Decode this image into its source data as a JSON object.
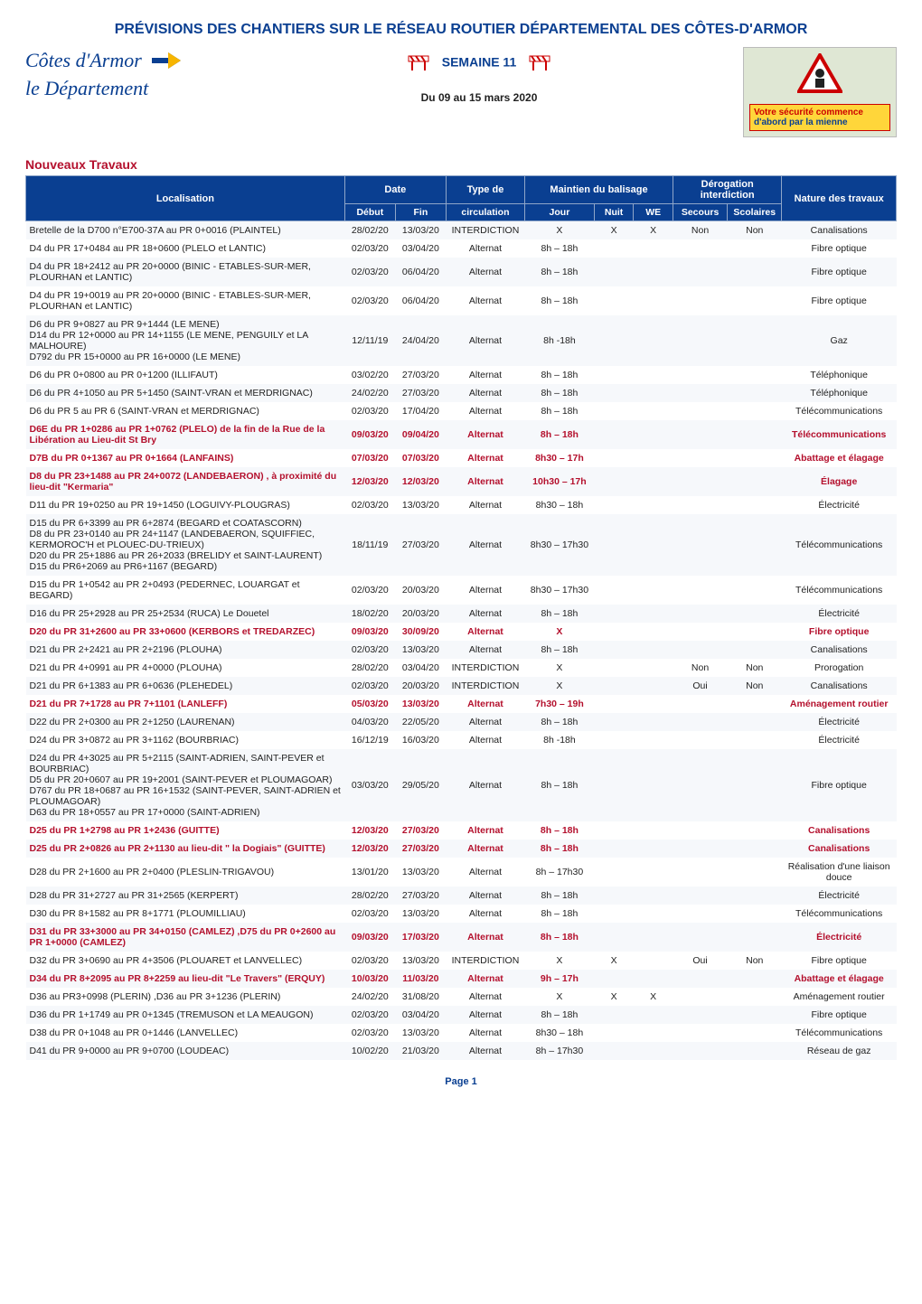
{
  "title": "PRÉVISIONS DES CHANTIERS SUR LE RÉSEAU ROUTIER DÉPARTEMENTAL DES CÔTES-D'ARMOR",
  "logo": {
    "line1": "Côtes d'Armor",
    "line2": "le Département"
  },
  "semaine_label": "SEMAINE 11",
  "date_range": "Du 09 au 15 mars 2020",
  "panel": {
    "line1": "Votre sécurité commence",
    "line2": "d'abord par la mienne"
  },
  "section": "Nouveaux Travaux",
  "headers": {
    "localisation": "Localisation",
    "date": "Date",
    "debut": "Début",
    "fin": "Fin",
    "type": "Type de",
    "circulation": "circulation",
    "maintien": "Maintien du balisage",
    "jour": "Jour",
    "nuit": "Nuit",
    "we": "WE",
    "derog": "Dérogation interdiction",
    "secours": "Secours",
    "scolaires": "Scolaires",
    "nature": "Nature des travaux"
  },
  "rows": [
    {
      "loc": "Bretelle de la D700 n°E700-37A au PR 0+0016 (PLAINTEL)",
      "d": "28/02/20",
      "f": "13/03/20",
      "t": "INTERDICTION",
      "j": "X",
      "n": "X",
      "w": "X",
      "s": "Non",
      "sc": "Non",
      "nat": "Canalisations"
    },
    {
      "loc": "D4 du PR 17+0484 au PR 18+0600 (PLELO et LANTIC)",
      "d": "02/03/20",
      "f": "03/04/20",
      "t": "Alternat",
      "j": "8h – 18h",
      "n": "",
      "w": "",
      "s": "",
      "sc": "",
      "nat": "Fibre optique"
    },
    {
      "loc": "D4 du PR 18+2412 au PR 20+0000 (BINIC - ETABLES-SUR-MER, PLOURHAN et LANTIC)",
      "d": "02/03/20",
      "f": "06/04/20",
      "t": "Alternat",
      "j": "8h – 18h",
      "n": "",
      "w": "",
      "s": "",
      "sc": "",
      "nat": "Fibre optique"
    },
    {
      "loc": "D4 du PR 19+0019 au PR 20+0000 (BINIC - ETABLES-SUR-MER, PLOURHAN et LANTIC)",
      "d": "02/03/20",
      "f": "06/04/20",
      "t": "Alternat",
      "j": "8h – 18h",
      "n": "",
      "w": "",
      "s": "",
      "sc": "",
      "nat": "Fibre optique"
    },
    {
      "loc": "D6 du PR 9+0827 au PR 9+1444 (LE MENE)\nD14 du PR 12+0000 au PR 14+1155 (LE MENE, PENGUILY et LA MALHOURE)\nD792 du PR 15+0000 au PR 16+0000 (LE MENE)",
      "d": "12/11/19",
      "f": "24/04/20",
      "t": "Alternat",
      "j": "8h -18h",
      "n": "",
      "w": "",
      "s": "",
      "sc": "",
      "nat": "Gaz"
    },
    {
      "loc": "D6 du PR 0+0800 au PR 0+1200 (ILLIFAUT)",
      "d": "03/02/20",
      "f": "27/03/20",
      "t": "Alternat",
      "j": "8h – 18h",
      "n": "",
      "w": "",
      "s": "",
      "sc": "",
      "nat": "Téléphonique"
    },
    {
      "loc": "D6 du PR 4+1050 au PR 5+1450 (SAINT-VRAN et MERDRIGNAC)",
      "d": "24/02/20",
      "f": "27/03/20",
      "t": "Alternat",
      "j": "8h – 18h",
      "n": "",
      "w": "",
      "s": "",
      "sc": "",
      "nat": "Téléphonique"
    },
    {
      "loc": "D6 du PR 5 au PR 6 (SAINT-VRAN et MERDRIGNAC)",
      "d": "02/03/20",
      "f": "17/04/20",
      "t": "Alternat",
      "j": "8h – 18h",
      "n": "",
      "w": "",
      "s": "",
      "sc": "",
      "nat": "Télécommunications"
    },
    {
      "red": true,
      "loc": "D6E du PR 1+0286 au PR 1+0762 (PLELO)  de la fin de la Rue de la Libération au Lieu-dit St Bry",
      "d": "09/03/20",
      "f": "09/04/20",
      "t": "Alternat",
      "j": "8h – 18h",
      "n": "",
      "w": "",
      "s": "",
      "sc": "",
      "nat": "Télécommunications"
    },
    {
      "red": true,
      "loc": "D7B du PR 0+1367 au PR 0+1664 (LANFAINS)",
      "d": "07/03/20",
      "f": "07/03/20",
      "t": "Alternat",
      "j": "8h30 – 17h",
      "n": "",
      "w": "",
      "s": "",
      "sc": "",
      "nat": "Abattage et élagage"
    },
    {
      "red": true,
      "loc": "D8 du PR 23+1488 au PR 24+0072 (LANDEBAERON) , à proximité du lieu-dit \"Kermaria\"",
      "d": "12/03/20",
      "f": "12/03/20",
      "t": "Alternat",
      "j": "10h30 – 17h",
      "n": "",
      "w": "",
      "s": "",
      "sc": "",
      "nat": "Élagage"
    },
    {
      "loc": "D11 du PR 19+0250 au PR 19+1450 (LOGUIVY-PLOUGRAS)",
      "d": "02/03/20",
      "f": "13/03/20",
      "t": "Alternat",
      "j": "8h30 – 18h",
      "n": "",
      "w": "",
      "s": "",
      "sc": "",
      "nat": "Électricité"
    },
    {
      "loc": "D15 du PR 6+3399 au PR 6+2874 (BEGARD et COATASCORN)\nD8 du PR 23+0140 au PR 24+1147 (LANDEBAERON, SQUIFFIEC, KERMOROC'H et PLOUEC-DU-TRIEUX)\nD20 du PR 25+1886 au PR 26+2033 (BRELIDY et SAINT-LAURENT)\nD15 du PR6+2069 au PR6+1167  (BEGARD)",
      "d": "18/11/19",
      "f": "27/03/20",
      "t": "Alternat",
      "j": "8h30 – 17h30",
      "n": "",
      "w": "",
      "s": "",
      "sc": "",
      "nat": "Télécommunications"
    },
    {
      "loc": "D15 du PR 1+0542 au PR 2+0493 (PEDERNEC, LOUARGAT et BEGARD)",
      "d": "02/03/20",
      "f": "20/03/20",
      "t": "Alternat",
      "j": "8h30 – 17h30",
      "n": "",
      "w": "",
      "s": "",
      "sc": "",
      "nat": "Télécommunications"
    },
    {
      "loc": "D16 du PR 25+2928 au PR 25+2534 (RUCA)  Le  Douetel",
      "d": "18/02/20",
      "f": "20/03/20",
      "t": "Alternat",
      "j": "8h – 18h",
      "n": "",
      "w": "",
      "s": "",
      "sc": "",
      "nat": "Électricité"
    },
    {
      "red": true,
      "loc": "D20 du PR 31+2600 au PR 33+0600 (KERBORS et TREDARZEC)",
      "d": "09/03/20",
      "f": "30/09/20",
      "t": "Alternat",
      "j": "X",
      "n": "",
      "w": "",
      "s": "",
      "sc": "",
      "nat": "Fibre optique"
    },
    {
      "loc": "D21 du PR 2+2421 au PR 2+2196 (PLOUHA)",
      "d": "02/03/20",
      "f": "13/03/20",
      "t": "Alternat",
      "j": "8h – 18h",
      "n": "",
      "w": "",
      "s": "",
      "sc": "",
      "nat": "Canalisations"
    },
    {
      "loc": "D21 du PR 4+0991 au PR 4+0000 (PLOUHA)",
      "d": "28/02/20",
      "f": "03/04/20",
      "t": "INTERDICTION",
      "j": "X",
      "n": "",
      "w": "",
      "s": "Non",
      "sc": "Non",
      "nat": "Prorogation"
    },
    {
      "loc": "D21 du PR 6+1383 au PR 6+0636 (PLEHEDEL)",
      "d": "02/03/20",
      "f": "20/03/20",
      "t": "INTERDICTION",
      "j": "X",
      "n": "",
      "w": "",
      "s": "Oui",
      "sc": "Non",
      "nat": "Canalisations"
    },
    {
      "red": true,
      "loc": "D21 du PR 7+1728 au PR 7+1101 (LANLEFF)",
      "d": "05/03/20",
      "f": "13/03/20",
      "t": "Alternat",
      "j": "7h30 – 19h",
      "n": "",
      "w": "",
      "s": "",
      "sc": "",
      "nat": "Aménagement routier"
    },
    {
      "loc": "D22 du PR 2+0300 au PR 2+1250 (LAURENAN)",
      "d": "04/03/20",
      "f": "22/05/20",
      "t": "Alternat",
      "j": "8h – 18h",
      "n": "",
      "w": "",
      "s": "",
      "sc": "",
      "nat": "Électricité"
    },
    {
      "loc": "D24 du PR 3+0872 au PR 3+1162 (BOURBRIAC)",
      "d": "16/12/19",
      "f": "16/03/20",
      "t": "Alternat",
      "j": "8h -18h",
      "n": "",
      "w": "",
      "s": "",
      "sc": "",
      "nat": "Électricité"
    },
    {
      "loc": "D24 du PR 4+3025 au PR 5+2115 (SAINT-ADRIEN, SAINT-PEVER et BOURBRIAC)\nD5 du PR 20+0607 au PR 19+2001 (SAINT-PEVER et PLOUMAGOAR)\nD767 du PR 18+0687 au PR 16+1532 (SAINT-PEVER, SAINT-ADRIEN et PLOUMAGOAR)\nD63 du PR 18+0557 au PR 17+0000 (SAINT-ADRIEN)",
      "d": "03/03/20",
      "f": "29/05/20",
      "t": "Alternat",
      "j": "8h – 18h",
      "n": "",
      "w": "",
      "s": "",
      "sc": "",
      "nat": "Fibre optique"
    },
    {
      "red": true,
      "loc": "D25 du PR 1+2798 au PR 1+2436 (GUITTE)",
      "d": "12/03/20",
      "f": "27/03/20",
      "t": "Alternat",
      "j": "8h – 18h",
      "n": "",
      "w": "",
      "s": "",
      "sc": "",
      "nat": "Canalisations"
    },
    {
      "red": true,
      "loc": "D25 du PR 2+0826 au PR 2+1130  au lieu-dit  \" la Dogiais\" (GUITTE)",
      "d": "12/03/20",
      "f": "27/03/20",
      "t": "Alternat",
      "j": "8h – 18h",
      "n": "",
      "w": "",
      "s": "",
      "sc": "",
      "nat": "Canalisations"
    },
    {
      "loc": "D28 du PR 2+1600 au PR 2+0400 (PLESLIN-TRIGAVOU)",
      "d": "13/01/20",
      "f": "13/03/20",
      "t": "Alternat",
      "j": "8h – 17h30",
      "n": "",
      "w": "",
      "s": "",
      "sc": "",
      "nat": "Réalisation d'une liaison douce"
    },
    {
      "loc": "D28 du PR 31+2727 au PR 31+2565 (KERPERT)",
      "d": "28/02/20",
      "f": "27/03/20",
      "t": "Alternat",
      "j": "8h – 18h",
      "n": "",
      "w": "",
      "s": "",
      "sc": "",
      "nat": "Électricité"
    },
    {
      "loc": "D30 du PR 8+1582 au PR 8+1771 (PLOUMILLIAU)",
      "d": "02/03/20",
      "f": "13/03/20",
      "t": "Alternat",
      "j": "8h – 18h",
      "n": "",
      "w": "",
      "s": "",
      "sc": "",
      "nat": "Télécommunications"
    },
    {
      "red": true,
      "loc": "D31 du PR 33+3000 au PR 34+0150 (CAMLEZ) ,D75 du PR 0+2600 au PR 1+0000 (CAMLEZ)",
      "d": "09/03/20",
      "f": "17/03/20",
      "t": "Alternat",
      "j": "8h – 18h",
      "n": "",
      "w": "",
      "s": "",
      "sc": "",
      "nat": "Électricité"
    },
    {
      "loc": "D32 du PR 3+0690 au PR 4+3506 (PLOUARET et LANVELLEC)",
      "d": "02/03/20",
      "f": "13/03/20",
      "t": "INTERDICTION",
      "j": "X",
      "n": "X",
      "w": "",
      "s": "Oui",
      "sc": "Non",
      "nat": "Fibre optique"
    },
    {
      "red": true,
      "loc": "D34 du PR 8+2095 au PR 8+2259 au lieu-dit \"Le Travers\" (ERQUY)",
      "d": "10/03/20",
      "f": "11/03/20",
      "t": "Alternat",
      "j": "9h – 17h",
      "n": "",
      "w": "",
      "s": "",
      "sc": "",
      "nat": "Abattage et élagage"
    },
    {
      "loc": "D36 au PR3+0998  (PLERIN) ,D36 au PR 3+1236 (PLERIN)",
      "d": "24/02/20",
      "f": "31/08/20",
      "t": "Alternat",
      "j": "X",
      "n": "X",
      "w": "X",
      "s": "",
      "sc": "",
      "nat": "Aménagement routier"
    },
    {
      "loc": "D36 du PR 1+1749 au PR 0+1345 (TREMUSON et LA MEAUGON)",
      "d": "02/03/20",
      "f": "03/04/20",
      "t": "Alternat",
      "j": "8h – 18h",
      "n": "",
      "w": "",
      "s": "",
      "sc": "",
      "nat": "Fibre optique"
    },
    {
      "loc": "D38 du PR 0+1048 au PR 0+1446 (LANVELLEC)",
      "d": "02/03/20",
      "f": "13/03/20",
      "t": "Alternat",
      "j": "8h30 – 18h",
      "n": "",
      "w": "",
      "s": "",
      "sc": "",
      "nat": "Télécommunications"
    },
    {
      "loc": "D41 du PR 9+0000 au PR 9+0700 (LOUDEAC)",
      "d": "10/02/20",
      "f": "21/03/20",
      "t": "Alternat",
      "j": "8h – 17h30",
      "n": "",
      "w": "",
      "s": "",
      "sc": "",
      "nat": "Réseau de gaz"
    }
  ],
  "page": "Page 1"
}
